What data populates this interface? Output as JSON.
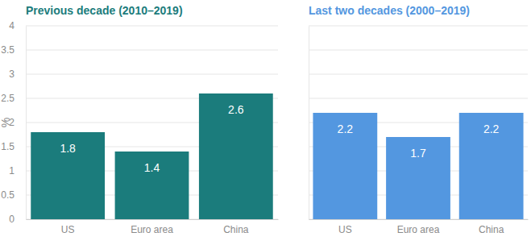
{
  "chart_data": [
    {
      "type": "bar",
      "title": "Previous decade (2010–2019)",
      "y_label": "%",
      "categories": [
        "US",
        "Euro area",
        "China"
      ],
      "values": [
        1.8,
        1.4,
        2.6
      ],
      "color": "#1b7c7c",
      "ylim": [
        0,
        4
      ],
      "yticks": [
        0,
        0.5,
        1,
        1.5,
        2,
        2.5,
        3,
        3.5,
        4
      ],
      "grid": true,
      "data_labels": true
    },
    {
      "type": "bar",
      "title": "Last two decades (2000–2019)",
      "categories": [
        "US",
        "Euro area",
        "China"
      ],
      "values": [
        2.2,
        1.7,
        2.2
      ],
      "color": "#5397e0",
      "ylim": [
        0,
        4
      ],
      "yticks": [
        0,
        0.5,
        1,
        1.5,
        2,
        2.5,
        3,
        3.5,
        4
      ],
      "grid": true,
      "data_labels": true,
      "tick_labels": "x"
    }
  ]
}
